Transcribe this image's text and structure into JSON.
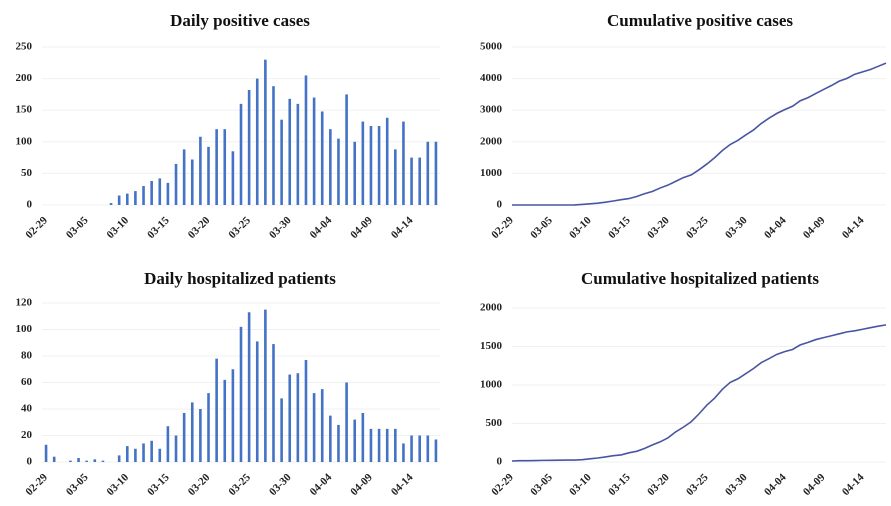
{
  "chart_data": [
    {
      "type": "bar",
      "title": "Daily positive cases",
      "color": "#4472c4",
      "grid": true,
      "categories": [
        "02-29",
        null,
        null,
        null,
        null,
        "03-05",
        null,
        null,
        null,
        null,
        "03-10",
        null,
        null,
        null,
        null,
        "03-15",
        null,
        null,
        null,
        null,
        "03-20",
        null,
        null,
        null,
        null,
        "03-25",
        null,
        null,
        null,
        null,
        "03-30",
        null,
        null,
        null,
        null,
        "04-04",
        null,
        null,
        null,
        null,
        "04-09",
        null,
        null,
        null,
        null,
        "04-14",
        null,
        null,
        null
      ],
      "values": [
        0,
        0,
        0,
        0,
        0,
        0,
        0,
        0,
        3,
        15,
        18,
        22,
        30,
        38,
        42,
        35,
        65,
        88,
        72,
        108,
        92,
        120,
        120,
        85,
        160,
        182,
        200,
        230,
        188,
        135,
        168,
        160,
        205,
        170,
        148,
        120,
        105,
        175,
        100,
        132,
        125,
        125,
        138,
        88,
        132,
        75,
        75,
        100,
        100
      ],
      "ylim": [
        0,
        250
      ],
      "yticks": [
        0,
        50,
        100,
        150,
        200,
        250
      ]
    },
    {
      "type": "line",
      "title": "Cumulative positive cases",
      "color": "#4a55a2",
      "grid": true,
      "categories": [
        "02-29",
        null,
        null,
        null,
        null,
        "03-05",
        null,
        null,
        null,
        null,
        "03-10",
        null,
        null,
        null,
        null,
        "03-15",
        null,
        null,
        null,
        null,
        "03-20",
        null,
        null,
        null,
        null,
        "03-25",
        null,
        null,
        null,
        null,
        "03-30",
        null,
        null,
        null,
        null,
        "04-04",
        null,
        null,
        null,
        null,
        "04-09",
        null,
        null,
        null,
        null,
        "04-14",
        null,
        null,
        null
      ],
      "values": [
        0,
        0,
        0,
        0,
        0,
        0,
        0,
        0,
        3,
        18,
        36,
        58,
        88,
        126,
        168,
        203,
        268,
        356,
        428,
        536,
        628,
        748,
        868,
        953,
        1113,
        1295,
        1495,
        1725,
        1913,
        2048,
        2216,
        2376,
        2581,
        2751,
        2899,
        3019,
        3124,
        3299,
        3399,
        3531,
        3656,
        3781,
        3919,
        4007,
        4139,
        4214,
        4289,
        4389,
        4489
      ],
      "ylim": [
        0,
        5000
      ],
      "yticks": [
        0,
        1000,
        2000,
        3000,
        4000,
        5000
      ]
    },
    {
      "type": "bar",
      "title": "Daily hospitalized patients",
      "color": "#4472c4",
      "grid": true,
      "categories": [
        "02-29",
        null,
        null,
        null,
        null,
        "03-05",
        null,
        null,
        null,
        null,
        "03-10",
        null,
        null,
        null,
        null,
        "03-15",
        null,
        null,
        null,
        null,
        "03-20",
        null,
        null,
        null,
        null,
        "03-25",
        null,
        null,
        null,
        null,
        "03-30",
        null,
        null,
        null,
        null,
        "04-04",
        null,
        null,
        null,
        null,
        "04-09",
        null,
        null,
        null,
        null,
        "04-14",
        null,
        null,
        null
      ],
      "values": [
        13,
        4,
        0,
        1,
        3,
        1,
        2,
        1,
        0,
        5,
        12,
        10,
        14,
        16,
        10,
        27,
        20,
        37,
        45,
        40,
        52,
        78,
        62,
        70,
        102,
        113,
        91,
        115,
        89,
        48,
        66,
        67,
        77,
        52,
        55,
        35,
        28,
        60,
        32,
        37,
        25,
        25,
        25,
        25,
        14,
        20,
        20,
        20,
        17
      ],
      "ylim": [
        0,
        120
      ],
      "yticks": [
        0,
        20,
        40,
        60,
        80,
        100,
        120
      ]
    },
    {
      "type": "line",
      "title": "Cumulative hospitalized patients",
      "color": "#4a55a2",
      "grid": true,
      "categories": [
        "02-29",
        null,
        null,
        null,
        null,
        "03-05",
        null,
        null,
        null,
        null,
        "03-10",
        null,
        null,
        null,
        null,
        "03-15",
        null,
        null,
        null,
        null,
        "03-20",
        null,
        null,
        null,
        null,
        "03-25",
        null,
        null,
        null,
        null,
        "03-30",
        null,
        null,
        null,
        null,
        "04-04",
        null,
        null,
        null,
        null,
        "04-09",
        null,
        null,
        null,
        null,
        "04-14",
        null,
        null,
        null
      ],
      "values": [
        13,
        17,
        17,
        18,
        21,
        22,
        24,
        25,
        25,
        30,
        42,
        52,
        66,
        82,
        92,
        119,
        139,
        176,
        221,
        261,
        313,
        391,
        453,
        523,
        625,
        738,
        829,
        944,
        1033,
        1081,
        1147,
        1214,
        1291,
        1343,
        1398,
        1433,
        1461,
        1521,
        1553,
        1590,
        1615,
        1640,
        1665,
        1690,
        1704,
        1724,
        1744,
        1764,
        1781
      ],
      "ylim": [
        0,
        2000
      ],
      "yticks": [
        0,
        500,
        1000,
        1500,
        2000
      ]
    }
  ]
}
